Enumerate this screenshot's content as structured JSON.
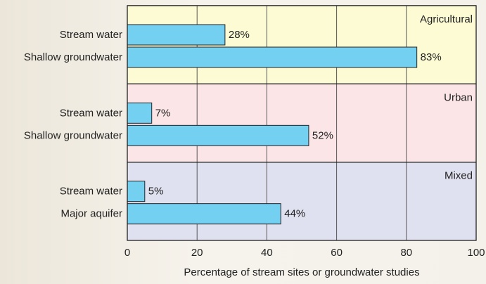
{
  "chart_data": {
    "type": "bar",
    "orientation": "horizontal",
    "xlabel": "Percentage of stream sites or groundwater studies",
    "xlim": [
      0,
      100
    ],
    "xticks": [
      0,
      20,
      40,
      60,
      80,
      100
    ],
    "grid": true,
    "bar_color": "#74d0f1",
    "panels": [
      {
        "name": "Agricultural",
        "color": "#fdfbd3",
        "categories": [
          "Stream water",
          "Shallow groundwater"
        ],
        "values": [
          28,
          83
        ],
        "value_labels": [
          "28%",
          "83%"
        ]
      },
      {
        "name": "Urban",
        "color": "#fce5e7",
        "categories": [
          "Stream water",
          "Shallow groundwater"
        ],
        "values": [
          7,
          52
        ],
        "value_labels": [
          "7%",
          "52%"
        ]
      },
      {
        "name": "Mixed",
        "color": "#e0e1f0",
        "categories": [
          "Stream water",
          "Major aquifer"
        ],
        "values": [
          5,
          44
        ],
        "value_labels": [
          "5%",
          "44%"
        ]
      }
    ]
  }
}
